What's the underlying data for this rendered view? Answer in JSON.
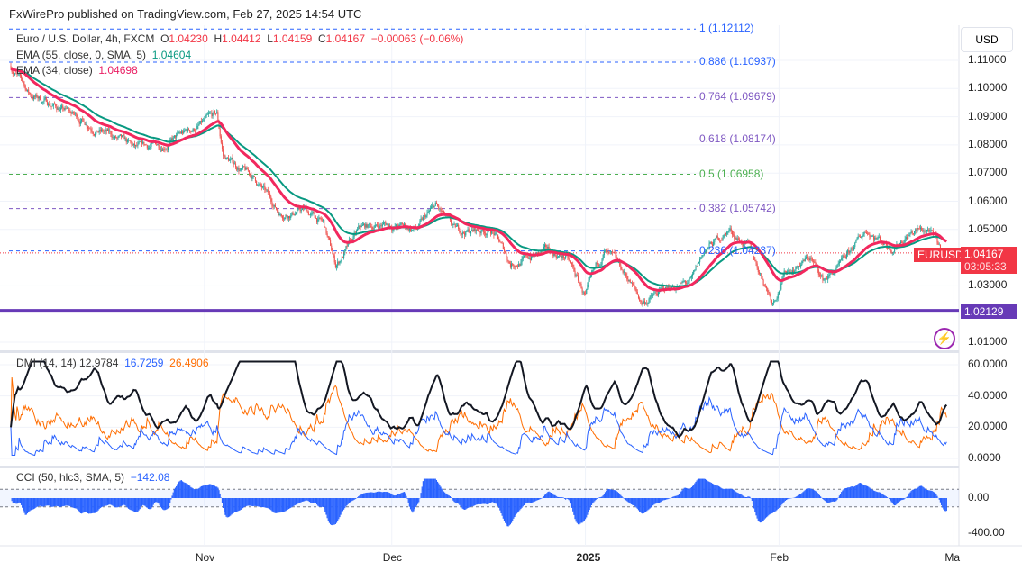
{
  "header": {
    "published": "FxWirePro published on TradingView.com, Feb 27, 2025 14:54 UTC"
  },
  "legend": {
    "symbol": "Euro / U.S. Dollar, 4h, FXCM",
    "o_label": "O",
    "o": "1.04230",
    "h_label": "H",
    "h": "1.04412",
    "l_label": "L",
    "l": "1.04159",
    "c_label": "C",
    "c": "1.04167",
    "change": "−0.00063 (−0.06%)",
    "ema55_label": "EMA (55, close, 0, SMA, 5)",
    "ema55": "1.04604",
    "ema34_label": "EMA (34, close)",
    "ema34": "1.04698"
  },
  "colors": {
    "up": "#26a69a",
    "down": "#ef5350",
    "ema55": "#089981",
    "ema34": "#f2285e",
    "support": "#673ab7",
    "plusdi": "#2962ff",
    "minusdi": "#ff6d00",
    "adx": "#131722",
    "cci": "#2962ff"
  },
  "fib_levels": [
    {
      "label": "1 (1.12112)",
      "price": 1.12112,
      "color": "#2962ff"
    },
    {
      "label": "0.886 (1.10937)",
      "price": 1.10937,
      "color": "#2962ff"
    },
    {
      "label": "0.764 (1.09679)",
      "price": 1.09679,
      "color": "#7e57c2"
    },
    {
      "label": "0.618 (1.08174)",
      "price": 1.08174,
      "color": "#7e57c2"
    },
    {
      "label": "0.5 (1.06958)",
      "price": 1.06958,
      "color": "#4caf50"
    },
    {
      "label": "0.382 (1.05742)",
      "price": 1.05742,
      "color": "#7e57c2"
    },
    {
      "label": "0.236 (1.04237)",
      "price": 1.04237,
      "color": "#2962ff"
    }
  ],
  "price_axis": {
    "currency": "USD",
    "ticks": [
      "1.11000",
      "1.10000",
      "1.09000",
      "1.08000",
      "1.07000",
      "1.06000",
      "1.05000",
      "1.03000",
      "1.01000"
    ],
    "tick_values": [
      1.11,
      1.1,
      1.09,
      1.08,
      1.07,
      1.06,
      1.05,
      1.03,
      1.01
    ],
    "last_symbol": "EURUSD",
    "last_price": "1.04167",
    "countdown": "03:05:33",
    "support_price": "1.02129",
    "support_value": 1.02129
  },
  "dmi": {
    "label": "DMI (14, 14)",
    "adx": "12.9784",
    "plus": "16.7259",
    "minus": "26.4906",
    "ticks": [
      "60.0000",
      "40.0000",
      "20.0000",
      "0.0000"
    ],
    "tick_values": [
      60,
      40,
      20,
      0
    ]
  },
  "cci": {
    "label": "CCI (50, hlc3, SMA, 5)",
    "value": "−142.08",
    "ticks": [
      "0.00",
      "-400.00"
    ],
    "tick_values": [
      0,
      -400
    ]
  },
  "time_axis": [
    {
      "label": "Nov",
      "day": 31
    },
    {
      "label": "Dec",
      "day": 61
    },
    {
      "label": "2025",
      "day": 92
    },
    {
      "label": "Feb",
      "day": 123
    },
    {
      "label": "Ma",
      "day": 151
    }
  ],
  "chart_data": {
    "type": "candlestick",
    "timeframe": "4h",
    "x_unit": "days since Oct 1 2024",
    "path_days": [
      0,
      3,
      7,
      13,
      20,
      24,
      27,
      33,
      34,
      39,
      43,
      47,
      50,
      52,
      56,
      60,
      65,
      68,
      71,
      77,
      80,
      86,
      89,
      92,
      95,
      99,
      101,
      106,
      109,
      111,
      115,
      118,
      122,
      124,
      128,
      130,
      133,
      137,
      141,
      144,
      147,
      149
    ],
    "path_prices": [
      1.108,
      1.098,
      1.094,
      1.087,
      1.078,
      1.08,
      1.083,
      1.09,
      1.076,
      1.068,
      1.056,
      1.057,
      1.052,
      1.037,
      1.05,
      1.052,
      1.05,
      1.058,
      1.049,
      1.05,
      1.038,
      1.042,
      1.04,
      1.026,
      1.042,
      1.032,
      1.024,
      1.03,
      1.031,
      1.042,
      1.05,
      1.044,
      1.025,
      1.035,
      1.04,
      1.032,
      1.037,
      1.05,
      1.044,
      1.049,
      1.05,
      1.0417
    ]
  }
}
